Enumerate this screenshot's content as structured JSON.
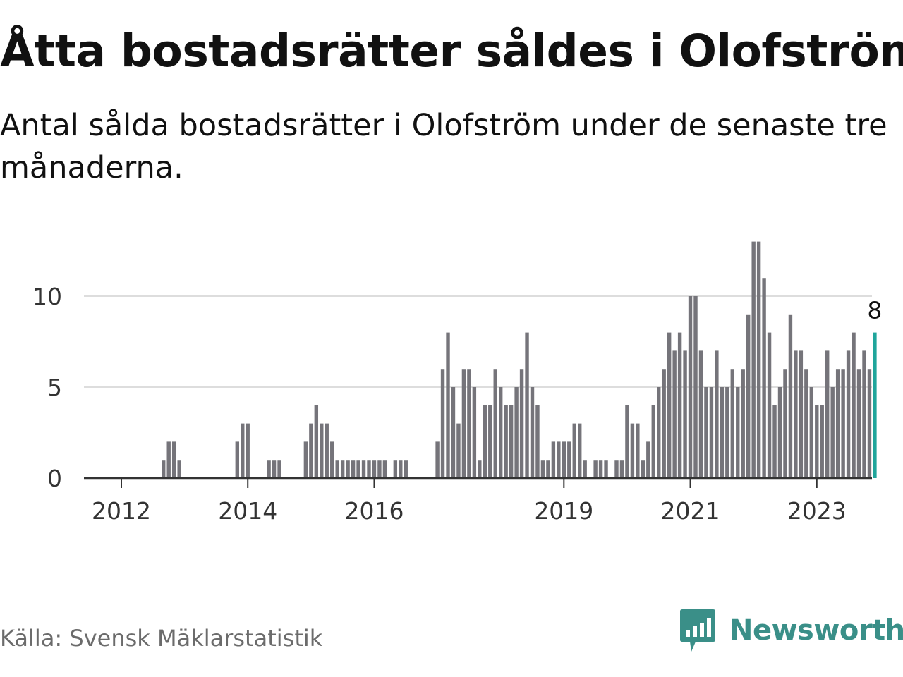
{
  "title": "Åtta bostadsrätter såldes i Olofström",
  "subtitle": "Antal sålda bostadsrätter i Olofström under de senaste tre månaderna.",
  "source": "Källa: Svensk Mäklarstatistik",
  "brand": {
    "name": "Newsworthy",
    "icon": "newsworthy-logo-icon"
  },
  "colors": {
    "bar": "#75747a",
    "highlight": "#1fa59b",
    "grid": "#dddddd",
    "axis": "#333333",
    "text": "#333333",
    "brand": "#3a8f88"
  },
  "chart_data": {
    "type": "bar",
    "x_unit": "month",
    "xtick_labels": [
      "2012",
      "2014",
      "2016",
      "2019",
      "2021",
      "2023"
    ],
    "ytick_labels": [
      "0",
      "5",
      "10"
    ],
    "ylim": [
      0,
      13.5
    ],
    "grid": true,
    "legend": "none",
    "highlight_label": "8",
    "series": [
      {
        "values": [
          0,
          0,
          0,
          0,
          0,
          0,
          0,
          0,
          1,
          2,
          2,
          1,
          0,
          0,
          0,
          0,
          0,
          0,
          0,
          0,
          0,
          0,
          2,
          3,
          3,
          0,
          0,
          0,
          1,
          1,
          1,
          0,
          0,
          0,
          0,
          2,
          3,
          4,
          3,
          3,
          2,
          1,
          1,
          1,
          1,
          1,
          1,
          1,
          1,
          1,
          1,
          0,
          1,
          1,
          1,
          0,
          0,
          0,
          0,
          0,
          2,
          6,
          8,
          5,
          3,
          6,
          6,
          5,
          1,
          4,
          4,
          6,
          5,
          4,
          4,
          5,
          6,
          8,
          5,
          4,
          1,
          1,
          2,
          2,
          2,
          2,
          3,
          3,
          1,
          0,
          1,
          1,
          1,
          0,
          1,
          1,
          4,
          3,
          3,
          1,
          2,
          4,
          5,
          6,
          8,
          7,
          8,
          7,
          10,
          10,
          7,
          5,
          5,
          7,
          5,
          5,
          6,
          5,
          6,
          9,
          13,
          13,
          11,
          8,
          4,
          5,
          6,
          9,
          7,
          7,
          6,
          5,
          4,
          4,
          7,
          5,
          6,
          6,
          7,
          8,
          6,
          7,
          6,
          8
        ]
      }
    ]
  }
}
